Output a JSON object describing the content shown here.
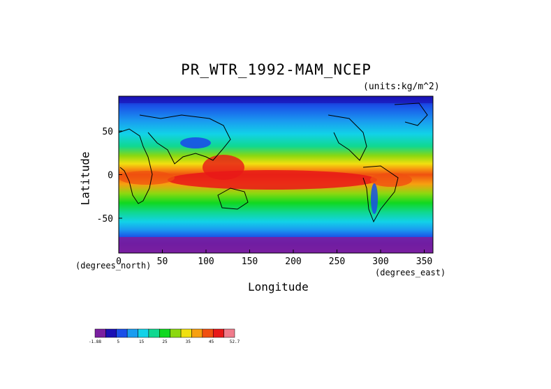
{
  "title": "PR_WTR_1992-MAM_NCEP",
  "units": "(units:kg/m^2)",
  "axes": {
    "xlabel": "Longitude",
    "ylabel": "Latitude",
    "x_unit": "(degrees_east)",
    "y_unit": "(degrees_north)",
    "xticks": [
      "0",
      "50",
      "100",
      "150",
      "200",
      "250",
      "300",
      "350"
    ],
    "yticks": [
      "50",
      "0",
      "-50"
    ]
  },
  "colorbar": {
    "colors": [
      "#7a1fa0",
      "#1a0fb4",
      "#1a4fe8",
      "#1a9cf0",
      "#12d2e8",
      "#10d890",
      "#10d820",
      "#8cd810",
      "#f0e010",
      "#f7a010",
      "#f05010",
      "#e81818",
      "#f07c8c"
    ],
    "labels": [
      "-1.88",
      "5",
      "15",
      "25",
      "35",
      "45",
      "52.7"
    ]
  },
  "chart_data": {
    "type": "heatmap",
    "title": "PR_WTR_1992-MAM_NCEP",
    "xlabel": "Longitude",
    "ylabel": "Latitude",
    "xlim": [
      0,
      360
    ],
    "ylim": [
      -90,
      90
    ],
    "units": "kg/m^2",
    "value_range": [
      -1.88,
      52.7
    ],
    "colorbar_ticks": [
      -1.88,
      5,
      15,
      25,
      35,
      45,
      52.7
    ],
    "zonal_profile": {
      "lat": [
        -90,
        -75,
        -60,
        -45,
        -30,
        -15,
        0,
        15,
        30,
        45,
        60,
        75,
        90
      ],
      "value": [
        2,
        4,
        10,
        18,
        25,
        36,
        46,
        38,
        24,
        14,
        8,
        4,
        2
      ]
    }
  }
}
